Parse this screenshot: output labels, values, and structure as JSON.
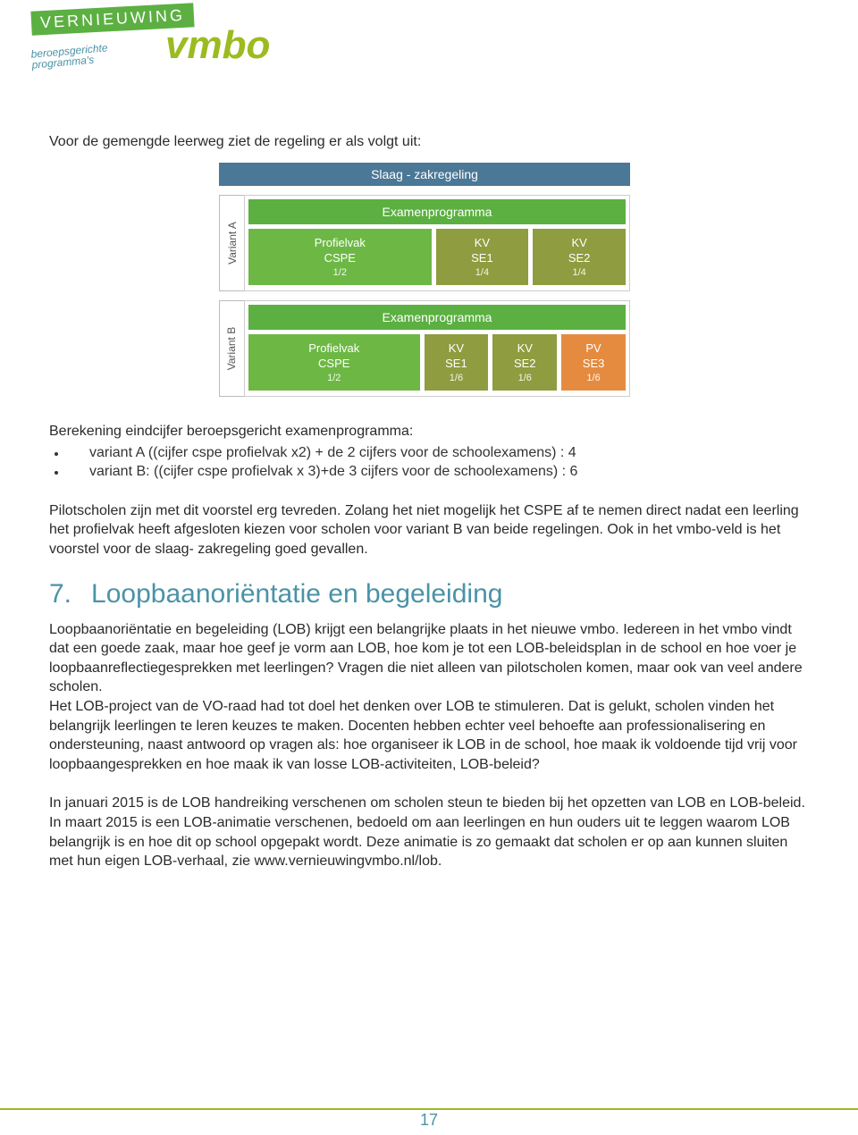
{
  "logo": {
    "banner": "VERNIEUWING",
    "sub1": "beroepsgerichte",
    "sub2": "programma's",
    "vmbo": "vmbo"
  },
  "intro1": "Voor de gemengde leerweg ziet de regeling er als volgt uit:",
  "diagram": {
    "titlebar": "Slaag - zakregeling",
    "variants": [
      {
        "label": "Variant A",
        "exam_header": "Examenprogramma",
        "blocks": [
          {
            "name": "Profielvak",
            "code": "CSPE",
            "frac": "1/2",
            "styleClass": "green",
            "flex": 2.1
          },
          {
            "name": "KV",
            "code": "SE1",
            "frac": "1/4",
            "styleClass": "olive",
            "flex": 1
          },
          {
            "name": "KV",
            "code": "SE2",
            "frac": "1/4",
            "styleClass": "olive",
            "flex": 1
          }
        ]
      },
      {
        "label": "Variant B",
        "exam_header": "Examenprogramma",
        "blocks": [
          {
            "name": "Profielvak",
            "code": "CSPE",
            "frac": "1/2",
            "styleClass": "green",
            "flex": 3
          },
          {
            "name": "KV",
            "code": "SE1",
            "frac": "1/6",
            "styleClass": "olive",
            "flex": 1
          },
          {
            "name": "KV",
            "code": "SE2",
            "frac": "1/6",
            "styleClass": "olive",
            "flex": 1
          },
          {
            "name": "PV",
            "code": "SE3",
            "frac": "1/6",
            "styleClass": "orange",
            "flex": 1
          }
        ]
      }
    ]
  },
  "calc": {
    "heading": "Berekening eindcijfer beroepsgericht examenprogramma:",
    "items": [
      "variant A ((cijfer cspe profielvak x2) + de 2 cijfers voor de schoolexamens) : 4",
      "variant B: ((cijfer cspe profielvak x 3)+de 3 cijfers voor de schoolexamens) : 6"
    ]
  },
  "para2": "Pilotscholen zijn met dit voorstel erg tevreden. Zolang het niet mogelijk het CSPE af te nemen direct nadat een leerling het profielvak heeft afgesloten kiezen voor scholen voor variant B van beide regelingen. Ook in het vmbo-veld is het voorstel voor de slaag- zakregeling goed gevallen.",
  "section7": {
    "num": "7.",
    "title": "Loopbaanoriëntatie en begeleiding",
    "p1": "Loopbaanoriëntatie en begeleiding (LOB) krijgt een belangrijke plaats in het nieuwe vmbo. Iedereen in het vmbo vindt dat een goede zaak, maar hoe geef je vorm aan LOB, hoe kom je tot een LOB-beleidsplan in de school en hoe voer je loopbaanreflectiegesprekken met leerlingen? Vragen die niet alleen van pilotscholen komen, maar ook van veel andere scholen.",
    "p2": "Het LOB-project van de VO-raad had tot doel het denken over LOB te stimuleren. Dat is gelukt, scholen vinden het belangrijk leerlingen te leren keuzes te maken. Docenten hebben echter veel behoefte aan professionalisering en ondersteuning, naast antwoord op vragen als: hoe organiseer ik LOB in de school, hoe maak ik voldoende tijd vrij voor loopbaangesprekken en hoe maak ik van losse LOB-activiteiten, LOB-beleid?",
    "p3": "In januari 2015 is de LOB handreiking verschenen om scholen steun te bieden bij het opzetten van LOB en LOB-beleid. In maart 2015 is een LOB-animatie verschenen, bedoeld om aan leerlingen en hun ouders uit te leggen waarom LOB belangrijk is en hoe dit op school opgepakt wordt. Deze animatie is zo gemaakt dat scholen er op aan kunnen sluiten met hun eigen LOB-verhaal, zie www.vernieuwingvmbo.nl/lob."
  },
  "page_num": "17",
  "colors": {
    "green_brand": "#9bbb20",
    "teal_brand": "#4a93a6",
    "banner_green": "#5bb041",
    "slate": "#4a7896",
    "block_green": "#6db845",
    "block_olive": "#8f9c3f",
    "block_orange": "#e58b3f",
    "text": "#2a2a2a",
    "page_bg": "#ffffff"
  },
  "fonts": {
    "body_pt": 16,
    "heading_pt": 30,
    "diagram_pt": 13
  }
}
